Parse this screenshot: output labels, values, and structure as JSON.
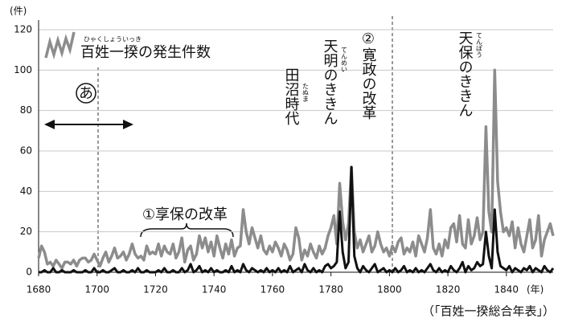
{
  "chart_data": {
    "type": "line",
    "y_label": "(件)",
    "x_label": "(年)",
    "source": "（「百姓一揆総合年表」）",
    "legend_ruby": "ひゃくしょういっき",
    "xlim": [
      1680,
      1856
    ],
    "ylim": [
      0,
      120
    ],
    "xticks": [
      1680,
      1700,
      1720,
      1740,
      1760,
      1780,
      1800,
      1820,
      1840
    ],
    "yticks": [
      0,
      20,
      40,
      60,
      80,
      100,
      120
    ],
    "grid": true,
    "annotations": [
      {
        "text": "あ"
      },
      {
        "text": "①享保の改革"
      },
      {
        "text": "田沼時代",
        "ruby": "たぬま"
      },
      {
        "text": "天明のききん",
        "ruby": "てんめい"
      },
      {
        "text": "②寛政の改革"
      },
      {
        "text": "天保のききん",
        "ruby": "てんぽう"
      }
    ],
    "x": [
      1680,
      1681,
      1682,
      1683,
      1684,
      1685,
      1686,
      1687,
      1688,
      1689,
      1690,
      1691,
      1692,
      1693,
      1694,
      1695,
      1696,
      1697,
      1698,
      1699,
      1700,
      1701,
      1702,
      1703,
      1704,
      1705,
      1706,
      1707,
      1708,
      1709,
      1710,
      1711,
      1712,
      1713,
      1714,
      1715,
      1716,
      1717,
      1718,
      1719,
      1720,
      1721,
      1722,
      1723,
      1724,
      1725,
      1726,
      1727,
      1728,
      1729,
      1730,
      1731,
      1732,
      1733,
      1734,
      1735,
      1736,
      1737,
      1738,
      1739,
      1740,
      1741,
      1742,
      1743,
      1744,
      1745,
      1746,
      1747,
      1748,
      1749,
      1750,
      1751,
      1752,
      1753,
      1754,
      1755,
      1756,
      1757,
      1758,
      1759,
      1760,
      1761,
      1762,
      1763,
      1764,
      1765,
      1766,
      1767,
      1768,
      1769,
      1770,
      1771,
      1772,
      1773,
      1774,
      1775,
      1776,
      1777,
      1778,
      1779,
      1780,
      1781,
      1782,
      1783,
      1784,
      1785,
      1786,
      1787,
      1788,
      1789,
      1790,
      1791,
      1792,
      1793,
      1794,
      1795,
      1796,
      1797,
      1798,
      1799,
      1800,
      1801,
      1802,
      1803,
      1804,
      1805,
      1806,
      1807,
      1808,
      1809,
      1810,
      1811,
      1812,
      1813,
      1814,
      1815,
      1816,
      1817,
      1818,
      1819,
      1820,
      1821,
      1822,
      1823,
      1824,
      1825,
      1826,
      1827,
      1828,
      1829,
      1830,
      1831,
      1832,
      1833,
      1834,
      1835,
      1836,
      1837,
      1838,
      1839,
      1840,
      1841,
      1842,
      1843,
      1844,
      1845,
      1846,
      1847,
      1848,
      1849,
      1850,
      1851,
      1852,
      1853,
      1854,
      1855,
      1856
    ],
    "series": [
      {
        "name": "百姓一揆の発生件数",
        "color": "#8c8c8c",
        "values": [
          7,
          13,
          10,
          4,
          5,
          3,
          6,
          4,
          2,
          5,
          5,
          4,
          6,
          3,
          6,
          7,
          7,
          5,
          6,
          9,
          6,
          3,
          7,
          10,
          5,
          8,
          12,
          7,
          8,
          10,
          6,
          9,
          14,
          9,
          7,
          8,
          6,
          13,
          9,
          10,
          9,
          14,
          8,
          13,
          10,
          9,
          14,
          7,
          10,
          17,
          5,
          11,
          13,
          6,
          9,
          18,
          12,
          17,
          10,
          15,
          8,
          18,
          12,
          7,
          14,
          9,
          16,
          8,
          12,
          13,
          31,
          20,
          14,
          22,
          17,
          12,
          18,
          11,
          9,
          13,
          10,
          15,
          12,
          8,
          14,
          11,
          6,
          9,
          22,
          17,
          6,
          11,
          8,
          14,
          10,
          7,
          13,
          9,
          12,
          18,
          22,
          28,
          14,
          44,
          25,
          16,
          24,
          52,
          20,
          12,
          16,
          10,
          14,
          18,
          10,
          13,
          20,
          14,
          10,
          12,
          8,
          13,
          10,
          15,
          17,
          9,
          12,
          10,
          15,
          8,
          18,
          14,
          10,
          17,
          31,
          12,
          9,
          14,
          8,
          16,
          12,
          22,
          24,
          15,
          28,
          14,
          12,
          26,
          14,
          18,
          27,
          16,
          20,
          72,
          30,
          20,
          100,
          45,
          30,
          20,
          22,
          18,
          25,
          12,
          22,
          14,
          10,
          18,
          26,
          12,
          16,
          28,
          8,
          16,
          20,
          24,
          18
        ]
      },
      {
        "color": "#111111",
        "values": [
          0,
          0,
          1,
          0,
          0,
          2,
          0,
          0,
          1,
          0,
          0,
          0,
          1,
          0,
          0,
          0,
          1,
          0,
          0,
          2,
          0,
          0,
          1,
          0,
          0,
          1,
          2,
          0,
          0,
          1,
          0,
          0,
          1,
          0,
          2,
          0,
          0,
          1,
          0,
          0,
          0,
          1,
          0,
          2,
          0,
          0,
          1,
          0,
          0,
          2,
          0,
          1,
          4,
          0,
          1,
          3,
          0,
          1,
          0,
          2,
          0,
          1,
          0,
          0,
          1,
          0,
          3,
          0,
          1,
          0,
          4,
          1,
          0,
          2,
          1,
          0,
          1,
          0,
          2,
          0,
          1,
          0,
          2,
          0,
          1,
          0,
          3,
          0,
          1,
          2,
          0,
          4,
          1,
          0,
          2,
          0,
          1,
          0,
          3,
          4,
          2,
          3,
          5,
          30,
          10,
          2,
          5,
          52,
          8,
          2,
          0,
          3,
          1,
          0,
          2,
          4,
          0,
          1,
          2,
          0,
          1,
          0,
          2,
          0,
          1,
          3,
          0,
          1,
          0,
          2,
          0,
          1,
          0,
          2,
          4,
          1,
          0,
          2,
          0,
          1,
          0,
          3,
          1,
          0,
          2,
          5,
          0,
          3,
          1,
          2,
          5,
          3,
          4,
          20,
          8,
          2,
          31,
          10,
          3,
          2,
          1,
          3,
          0,
          2,
          1,
          0,
          2,
          1,
          3,
          0,
          2,
          1,
          0,
          3,
          1,
          0,
          2
        ]
      }
    ]
  }
}
